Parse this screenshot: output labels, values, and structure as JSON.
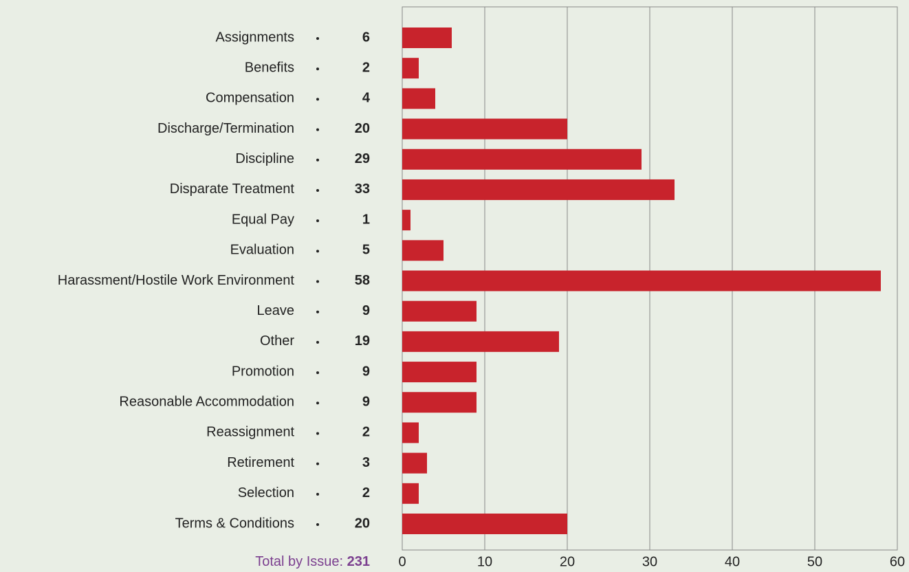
{
  "chart_data": {
    "type": "bar",
    "orientation": "horizontal",
    "categories": [
      "Assignments",
      "Benefits",
      "Compensation",
      "Discharge/Termination",
      "Discipline",
      "Disparate Treatment",
      "Equal Pay",
      "Evaluation",
      "Harassment/Hostile Work Environment",
      "Leave",
      "Other",
      "Promotion",
      "Reasonable Accommodation",
      "Reassignment",
      "Retirement",
      "Selection",
      "Terms & Conditions"
    ],
    "values": [
      6,
      2,
      4,
      20,
      29,
      33,
      1,
      5,
      58,
      9,
      19,
      9,
      9,
      2,
      3,
      2,
      20
    ],
    "color": "#c8232c",
    "xlim": [
      0,
      60
    ],
    "xticks": [
      0,
      10,
      20,
      30,
      40,
      50,
      60
    ],
    "grid": true,
    "total_label": "Total by Issue:",
    "total": 231
  }
}
